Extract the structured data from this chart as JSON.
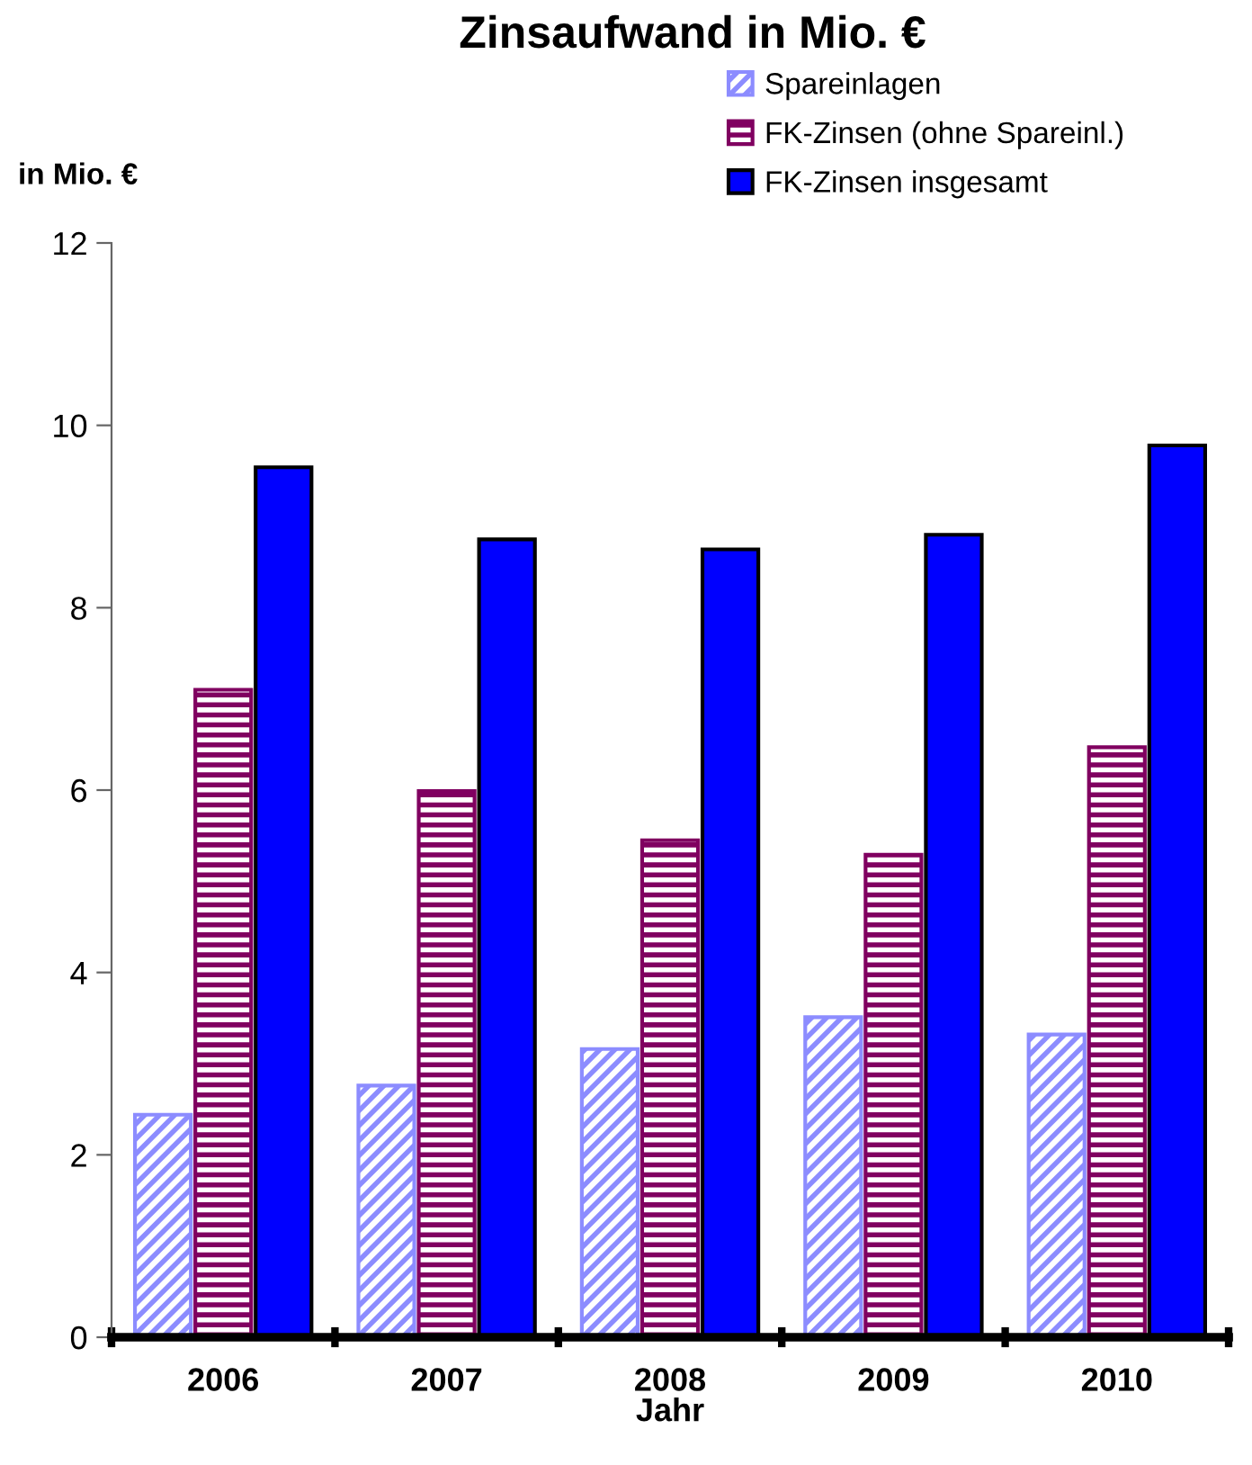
{
  "chart_data": {
    "type": "bar",
    "title": "Zinsaufwand in Mio. €",
    "xlabel": "Jahr",
    "ylabel": "in Mio. €",
    "categories": [
      "2006",
      "2007",
      "2008",
      "2009",
      "2010"
    ],
    "series": [
      {
        "name": "Spareinlagen",
        "color": "#8c8cff",
        "values": [
          2.44,
          2.76,
          3.16,
          3.51,
          3.32
        ]
      },
      {
        "name": "FK-Zinsen (ohne Spareinl.)",
        "color": "#800060",
        "values": [
          7.1,
          5.99,
          5.45,
          5.29,
          6.47
        ]
      },
      {
        "name": "FK-Zinsen insgesamt",
        "color": "#0000ff",
        "values": [
          9.54,
          8.75,
          8.64,
          8.8,
          9.78
        ]
      }
    ],
    "ylim": [
      0,
      12
    ],
    "yticks": [
      0,
      2,
      4,
      6,
      8,
      10,
      12
    ],
    "grid": false,
    "legend": "top right"
  }
}
